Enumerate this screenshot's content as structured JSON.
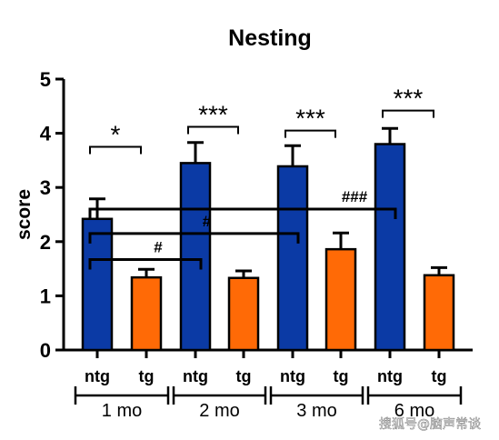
{
  "chart_data": {
    "type": "bar",
    "title": "Nesting",
    "ylabel": "score",
    "ylim": [
      0,
      5
    ],
    "yticks": [
      "0",
      "1",
      "2",
      "3",
      "4",
      "5"
    ],
    "groups": [
      {
        "label": "1 mo",
        "bars": [
          {
            "name": "ntg",
            "value": 2.42,
            "err": 0.37,
            "color": "#0b3aa5"
          },
          {
            "name": "tg",
            "value": 1.34,
            "err": 0.15,
            "color": "#ff6a06"
          }
        ]
      },
      {
        "label": "2 mo",
        "bars": [
          {
            "name": "ntg",
            "value": 3.45,
            "err": 0.38,
            "color": "#0b3aa5"
          },
          {
            "name": "tg",
            "value": 1.33,
            "err": 0.13,
            "color": "#ff6a06"
          }
        ]
      },
      {
        "label": "3 mo",
        "bars": [
          {
            "name": "ntg",
            "value": 3.39,
            "err": 0.38,
            "color": "#0b3aa5"
          },
          {
            "name": "tg",
            "value": 1.86,
            "err": 0.3,
            "color": "#ff6a06"
          }
        ]
      },
      {
        "label": "6 mo",
        "bars": [
          {
            "name": "ntg",
            "value": 3.8,
            "err": 0.29,
            "color": "#0b3aa5"
          },
          {
            "name": "tg",
            "value": 1.38,
            "err": 0.14,
            "color": "#ff6a06"
          }
        ]
      }
    ],
    "significance_within": [
      {
        "group": 0,
        "label": "*",
        "level": 3.75
      },
      {
        "group": 1,
        "label": "***",
        "level": 4.12
      },
      {
        "group": 2,
        "label": "***",
        "level": 4.05
      },
      {
        "group": 3,
        "label": "***",
        "level": 4.42
      }
    ],
    "significance_vs_1mo": [
      {
        "to_group": 1,
        "label": "#",
        "level": 1.67
      },
      {
        "to_group": 2,
        "label": "#",
        "level": 2.15
      },
      {
        "to_group": 3,
        "label": "###",
        "level": 2.6
      }
    ]
  },
  "watermark": "搜狐号@脑声常谈"
}
